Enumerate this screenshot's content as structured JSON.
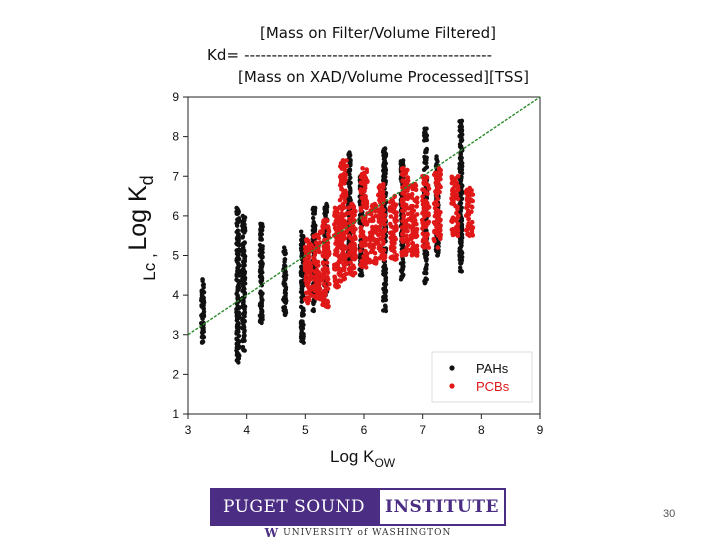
{
  "formula": {
    "numerator": "[Mass on Filter/Volume Filtered]",
    "equation": "Kd= ---------------------------------------------",
    "denominator": "[Mass on XAD/Volume Processed][TSS]"
  },
  "chart_data": {
    "type": "scatter",
    "xlabel_main": "Log K",
    "xlabel_sub": "OW",
    "ylabel_main": "Log K",
    "ylabel_sub": "d",
    "ylabel_overlay": "Lc ,",
    "xlim": [
      3,
      9
    ],
    "ylim": [
      1,
      9
    ],
    "x_ticks": [
      "3",
      "4",
      "5",
      "6",
      "7",
      "8",
      "9"
    ],
    "y_ticks": [
      "1",
      "2",
      "3",
      "4",
      "5",
      "6",
      "7",
      "8",
      "9"
    ],
    "reference_line": {
      "x": [
        3,
        9
      ],
      "y": [
        3,
        9
      ],
      "color": "#2a8a2a",
      "style": "dashed"
    },
    "legend_position": "bottom-right",
    "series": [
      {
        "name": "PAHs",
        "color": "#111111",
        "columns": [
          {
            "x": 3.25,
            "ymin": 2.8,
            "ymax": 4.4
          },
          {
            "x": 3.85,
            "ymin": 2.3,
            "ymax": 6.2
          },
          {
            "x": 3.95,
            "ymin": 2.6,
            "ymax": 6.0
          },
          {
            "x": 4.25,
            "ymin": 3.3,
            "ymax": 5.8
          },
          {
            "x": 4.65,
            "ymin": 3.5,
            "ymax": 5.2
          },
          {
            "x": 4.95,
            "ymin": 2.8,
            "ymax": 5.6
          },
          {
            "x": 5.15,
            "ymin": 3.6,
            "ymax": 6.2
          },
          {
            "x": 5.35,
            "ymin": 4.0,
            "ymax": 6.3
          },
          {
            "x": 5.75,
            "ymin": 4.8,
            "ymax": 7.6
          },
          {
            "x": 5.95,
            "ymin": 4.5,
            "ymax": 7.0
          },
          {
            "x": 6.35,
            "ymin": 3.6,
            "ymax": 7.7
          },
          {
            "x": 6.65,
            "ymin": 4.4,
            "ymax": 7.4
          },
          {
            "x": 7.05,
            "ymin": 4.3,
            "ymax": 8.2
          },
          {
            "x": 7.25,
            "ymin": 5.0,
            "ymax": 7.5
          },
          {
            "x": 7.65,
            "ymin": 4.6,
            "ymax": 8.4
          }
        ]
      },
      {
        "name": "PCBs",
        "color": "#e01818",
        "columns": [
          {
            "x": 5.05,
            "ymin": 3.8,
            "ymax": 5.4
          },
          {
            "x": 5.2,
            "ymin": 3.9,
            "ymax": 5.6
          },
          {
            "x": 5.35,
            "ymin": 3.7,
            "ymax": 5.9
          },
          {
            "x": 5.55,
            "ymin": 4.2,
            "ymax": 6.2
          },
          {
            "x": 5.65,
            "ymin": 4.4,
            "ymax": 7.4
          },
          {
            "x": 5.8,
            "ymin": 4.5,
            "ymax": 6.3
          },
          {
            "x": 6.0,
            "ymin": 4.7,
            "ymax": 7.2
          },
          {
            "x": 6.15,
            "ymin": 4.8,
            "ymax": 6.3
          },
          {
            "x": 6.3,
            "ymin": 4.9,
            "ymax": 6.8
          },
          {
            "x": 6.5,
            "ymin": 4.9,
            "ymax": 6.5
          },
          {
            "x": 6.7,
            "ymin": 5.0,
            "ymax": 7.2
          },
          {
            "x": 6.85,
            "ymin": 5.0,
            "ymax": 6.8
          },
          {
            "x": 7.05,
            "ymin": 5.2,
            "ymax": 7.0
          },
          {
            "x": 7.25,
            "ymin": 5.2,
            "ymax": 7.2
          },
          {
            "x": 7.55,
            "ymin": 5.5,
            "ymax": 7.0
          },
          {
            "x": 7.8,
            "ymin": 5.5,
            "ymax": 6.7
          }
        ]
      }
    ]
  },
  "logo": {
    "left_text": "PUGET SOUND",
    "right_text": "INSTITUTE",
    "sub_mark": "W",
    "sub_text": "UNIVERSITY of WASHINGTON"
  },
  "page_number": "30"
}
